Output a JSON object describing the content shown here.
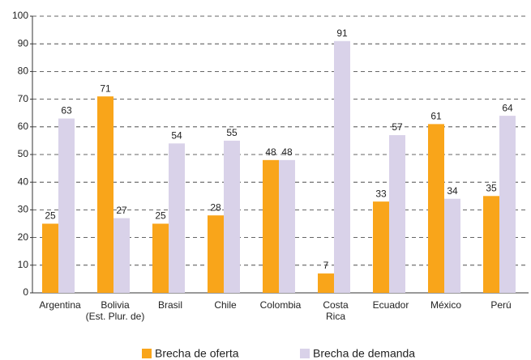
{
  "chart_data": {
    "type": "bar",
    "categories": [
      [
        "Argentina"
      ],
      [
        "Bolivia",
        "(Est. Plur. de)"
      ],
      [
        "Brasil"
      ],
      [
        "Chile"
      ],
      [
        "Colombia"
      ],
      [
        "Costa",
        "Rica"
      ],
      [
        "Ecuador"
      ],
      [
        "México"
      ],
      [
        "Perú"
      ]
    ],
    "series": [
      {
        "name": "Brecha de oferta",
        "color": "#f9a51a",
        "values": [
          25,
          71,
          25,
          28,
          48,
          7,
          33,
          61,
          35
        ]
      },
      {
        "name": "Brecha de demanda",
        "color": "#d9d2e9",
        "values": [
          63,
          27,
          54,
          55,
          48,
          91,
          57,
          34,
          64
        ]
      }
    ],
    "ylim": [
      0,
      100
    ],
    "yticks": [
      0,
      10,
      20,
      30,
      40,
      50,
      60,
      70,
      80,
      90,
      100
    ],
    "grid": true,
    "legend": "bottom"
  }
}
